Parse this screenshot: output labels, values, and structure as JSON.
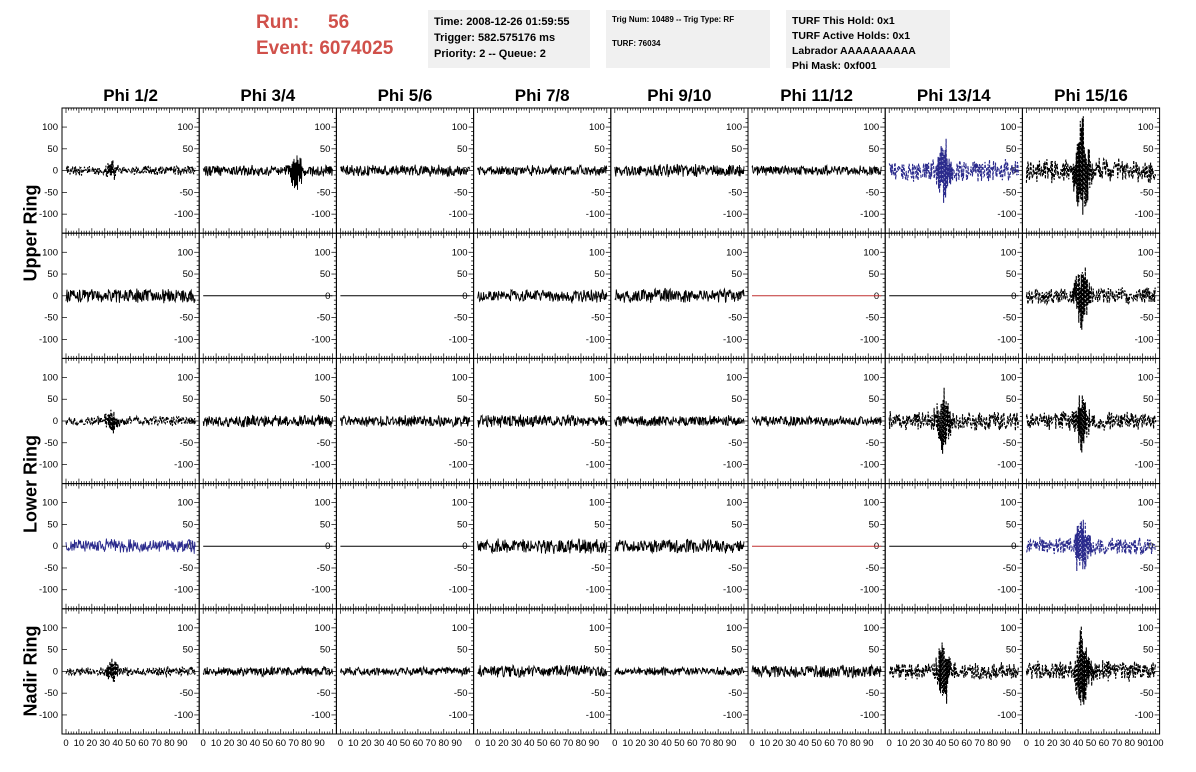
{
  "header": {
    "run_label": "Run:",
    "run_value": "56",
    "event_label": "Event:",
    "event_value": "6074025",
    "time": "Time: 2008-12-26 01:59:55",
    "trigger": "Trigger: 582.575176 ms",
    "priority": "Priority: 2 -- Queue: 2",
    "trig_num": "Trig Num: 10489 -- Trig Type: RF",
    "turf": "TURF: 76034",
    "turf_this_hold": "TURF This Hold: 0x1",
    "turf_active_holds": "TURF Active Holds: 0x1",
    "labrador": "Labrador AAAAAAAAAA",
    "phi_mask": "Phi Mask: 0xf001"
  },
  "chart_data": {
    "type": "line",
    "columns": [
      "Phi 1/2",
      "Phi 3/4",
      "Phi 5/6",
      "Phi 7/8",
      "Phi 9/10",
      "Phi 11/12",
      "Phi 13/14",
      "Phi 15/16"
    ],
    "rows": [
      "Upper Ring",
      "Lower Ring",
      "Nadir Ring"
    ],
    "xlim": [
      0,
      100
    ],
    "ylim": [
      -130,
      130
    ],
    "x_ticks": [
      0,
      10,
      20,
      30,
      40,
      50,
      60,
      70,
      80,
      90,
      100
    ],
    "y_ticks": [
      -100,
      -50,
      0,
      50,
      100
    ],
    "colors": {
      "default": "#000000",
      "blue": "#2a2a8c",
      "red": "#c03030"
    },
    "panels": [
      [
        {
          "amp": 12,
          "style": "dashed",
          "color": "default",
          "pulse": 0.35,
          "pa": 18
        },
        {
          "amp": 14,
          "style": "solid",
          "color": "default",
          "pulse": 0.72,
          "pa": 40
        },
        {
          "amp": 14,
          "style": "solid",
          "color": "default",
          "pulse": 0.0,
          "pa": 0
        },
        {
          "amp": 13,
          "style": "solid",
          "color": "default",
          "pulse": 0.0,
          "pa": 0
        },
        {
          "amp": 16,
          "style": "solid",
          "color": "default",
          "pulse": 0.0,
          "pa": 0
        },
        {
          "amp": 13,
          "style": "solid",
          "color": "default",
          "pulse": 0.0,
          "pa": 0
        },
        {
          "amp": 28,
          "style": "dashed",
          "color": "blue",
          "pulse": 0.42,
          "pa": 75
        },
        {
          "amp": 30,
          "style": "dashed",
          "color": "default",
          "pulse": 0.43,
          "pa": 120
        }
      ],
      [
        {
          "amp": 18,
          "style": "solid",
          "color": "default",
          "pulse": 0.0,
          "pa": 0
        },
        {
          "amp": 0,
          "style": "solid",
          "color": "default",
          "pulse": 0.0,
          "pa": 0
        },
        {
          "amp": 0,
          "style": "solid",
          "color": "default",
          "pulse": 0.0,
          "pa": 0
        },
        {
          "amp": 16,
          "style": "solid",
          "color": "default",
          "pulse": 0.0,
          "pa": 0
        },
        {
          "amp": 18,
          "style": "solid",
          "color": "default",
          "pulse": 0.0,
          "pa": 0
        },
        {
          "amp": 0,
          "style": "solid",
          "color": "red",
          "pulse": 0.0,
          "pa": 0
        },
        {
          "amp": 0,
          "style": "solid",
          "color": "default",
          "pulse": 0.0,
          "pa": 0
        },
        {
          "amp": 22,
          "style": "dashed",
          "color": "default",
          "pulse": 0.43,
          "pa": 75
        }
      ],
      [
        {
          "amp": 12,
          "style": "dashed",
          "color": "default",
          "pulse": 0.35,
          "pa": 25
        },
        {
          "amp": 15,
          "style": "solid",
          "color": "default",
          "pulse": 0.0,
          "pa": 0
        },
        {
          "amp": 15,
          "style": "solid",
          "color": "default",
          "pulse": 0.0,
          "pa": 0
        },
        {
          "amp": 16,
          "style": "solid",
          "color": "default",
          "pulse": 0.0,
          "pa": 0
        },
        {
          "amp": 14,
          "style": "solid",
          "color": "default",
          "pulse": 0.0,
          "pa": 0
        },
        {
          "amp": 13,
          "style": "solid",
          "color": "default",
          "pulse": 0.0,
          "pa": 0
        },
        {
          "amp": 24,
          "style": "dashed",
          "color": "default",
          "pulse": 0.42,
          "pa": 70
        },
        {
          "amp": 24,
          "style": "dashed",
          "color": "default",
          "pulse": 0.43,
          "pa": 65
        }
      ],
      [
        {
          "amp": 18,
          "style": "solid",
          "color": "blue",
          "pulse": 0.0,
          "pa": 0
        },
        {
          "amp": 0,
          "style": "solid",
          "color": "default",
          "pulse": 0.0,
          "pa": 0
        },
        {
          "amp": 0,
          "style": "solid",
          "color": "default",
          "pulse": 0.0,
          "pa": 0
        },
        {
          "amp": 18,
          "style": "solid",
          "color": "default",
          "pulse": 0.0,
          "pa": 0
        },
        {
          "amp": 18,
          "style": "solid",
          "color": "default",
          "pulse": 0.0,
          "pa": 0
        },
        {
          "amp": 0,
          "style": "solid",
          "color": "red",
          "pulse": 0.0,
          "pa": 0
        },
        {
          "amp": 0,
          "style": "solid",
          "color": "default",
          "pulse": 0.0,
          "pa": 0
        },
        {
          "amp": 22,
          "style": "dashed",
          "color": "blue",
          "pulse": 0.43,
          "pa": 70
        }
      ],
      [
        {
          "amp": 12,
          "style": "dashed",
          "color": "default",
          "pulse": 0.35,
          "pa": 25
        },
        {
          "amp": 12,
          "style": "solid",
          "color": "default",
          "pulse": 0.0,
          "pa": 0
        },
        {
          "amp": 11,
          "style": "solid",
          "color": "default",
          "pulse": 0.0,
          "pa": 0
        },
        {
          "amp": 15,
          "style": "solid",
          "color": "default",
          "pulse": 0.0,
          "pa": 0
        },
        {
          "amp": 11,
          "style": "solid",
          "color": "default",
          "pulse": 0.0,
          "pa": 0
        },
        {
          "amp": 17,
          "style": "solid",
          "color": "default",
          "pulse": 0.0,
          "pa": 0
        },
        {
          "amp": 22,
          "style": "dashed",
          "color": "default",
          "pulse": 0.42,
          "pa": 75
        },
        {
          "amp": 26,
          "style": "dashed",
          "color": "default",
          "pulse": 0.43,
          "pa": 95
        }
      ]
    ]
  }
}
